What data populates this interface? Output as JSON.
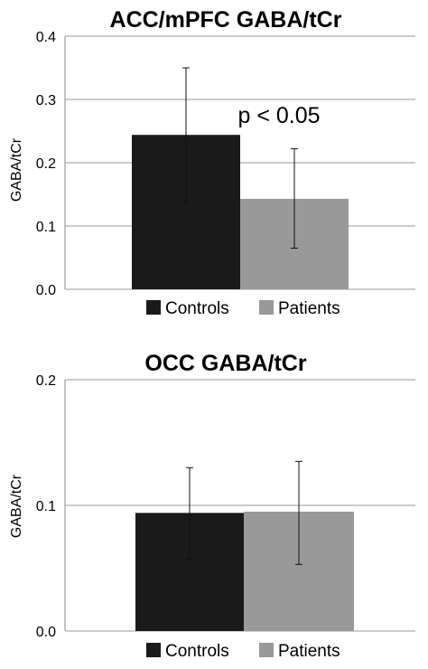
{
  "colors": {
    "controls": "#1a1a1a",
    "patients": "#999999"
  },
  "chart_data": [
    {
      "type": "bar",
      "title": "ACC/mPFC GABA/tCr",
      "ylabel": "GABA/tCr",
      "xlabel": "",
      "ylim": [
        0,
        0.4
      ],
      "yticks": [
        "0.0",
        "0.1",
        "0.2",
        "0.3",
        "0.4"
      ],
      "grid": true,
      "legend_position": "bottom",
      "series": [
        {
          "name": "Controls",
          "value": 0.244,
          "error_low": 0.138,
          "error_high": 0.35
        },
        {
          "name": "Patients",
          "value": 0.143,
          "error_low": 0.065,
          "error_high": 0.222
        }
      ],
      "annotation": "p < 0.05"
    },
    {
      "type": "bar",
      "title": "OCC GABA/tCr",
      "ylabel": "GABA/tCr",
      "xlabel": "",
      "ylim": [
        0,
        0.2
      ],
      "yticks": [
        "0.0",
        "0.1",
        "0.2"
      ],
      "grid": true,
      "legend_position": "bottom",
      "series": [
        {
          "name": "Controls",
          "value": 0.094,
          "error_low": 0.057,
          "error_high": 0.13
        },
        {
          "name": "Patients",
          "value": 0.095,
          "error_low": 0.053,
          "error_high": 0.135
        }
      ]
    }
  ]
}
